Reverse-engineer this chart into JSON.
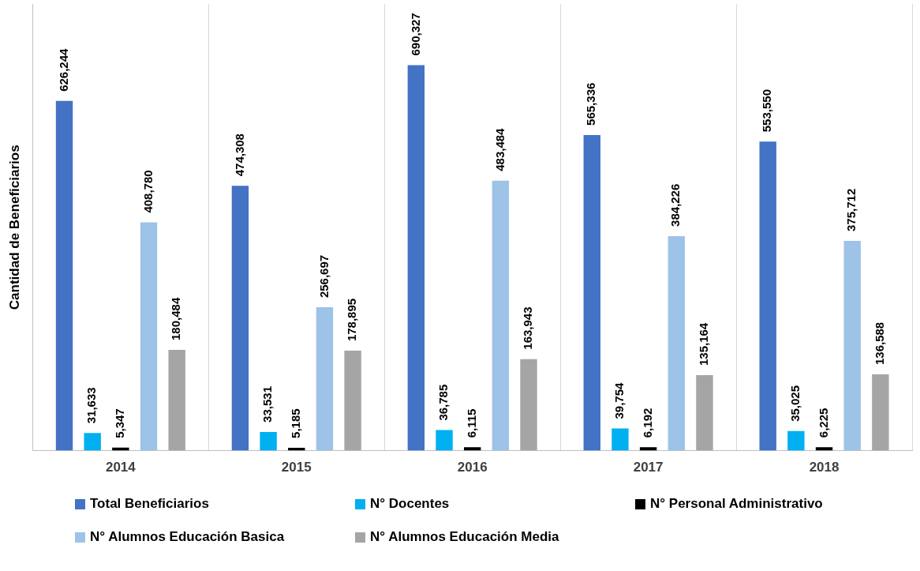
{
  "chart_data": {
    "type": "bar",
    "ylabel": "Cantidad de Beneficiarios",
    "categories": [
      "2014",
      "2015",
      "2016",
      "2017",
      "2018"
    ],
    "series": [
      {
        "name": "Total Beneficiarios",
        "color": "#4472c4",
        "values": [
          626244,
          474308,
          690327,
          565336,
          553550
        ],
        "value_labels": [
          "626,244",
          "474,308",
          "690,327",
          "565,336",
          "553,550"
        ]
      },
      {
        "name": "N° Docentes",
        "color": "#00b0f0",
        "values": [
          31633,
          33531,
          36785,
          39754,
          35025
        ],
        "value_labels": [
          "31,633",
          "33,531",
          "36,785",
          "39,754",
          "35,025"
        ]
      },
      {
        "name": "N° Personal Administrativo",
        "color": "#000000",
        "values": [
          5347,
          5185,
          6115,
          6192,
          6225
        ],
        "value_labels": [
          "5,347",
          "5,185",
          "6,115",
          "6,192",
          "6,225"
        ]
      },
      {
        "name": "N° Alumnos Educación Basica",
        "color": "#9dc3e6",
        "values": [
          408780,
          256697,
          483484,
          384226,
          375712
        ],
        "value_labels": [
          "408,780",
          "256,697",
          "483,484",
          "384,226",
          "375,712"
        ]
      },
      {
        "name": "N° Alumnos Educación Media",
        "color": "#a5a5a5",
        "values": [
          180484,
          178895,
          163943,
          135164,
          136588
        ],
        "value_labels": [
          "180,484",
          "178,895",
          "163,943",
          "135,164",
          "136,588"
        ]
      }
    ],
    "grid": "x",
    "legend": "bottom",
    "tick_labels": "x"
  }
}
